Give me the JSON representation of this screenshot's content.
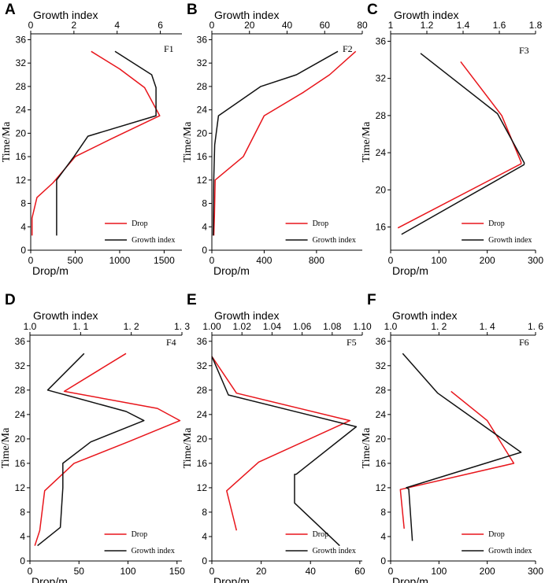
{
  "colors": {
    "drop": "#e8151b",
    "growth": "#111111",
    "axis": "#000000"
  },
  "chart_data": [
    {
      "panel": "A",
      "fault": "F1",
      "type": "line",
      "ylabel": "Time/Ma",
      "xlabel_bottom": "Drop/m",
      "xlabel_top": "Growth index",
      "ylim": [
        0,
        37
      ],
      "yticks": [
        0,
        4,
        8,
        12,
        16,
        20,
        24,
        28,
        32,
        36
      ],
      "bottom_xlim": [
        0,
        1700
      ],
      "bottom_ticks": [
        0,
        500,
        1000,
        1500
      ],
      "top_xlim": [
        0,
        7
      ],
      "top_ticks": [
        0,
        2,
        4,
        6
      ],
      "legend": {
        "drop": "Drop",
        "growth": "Growth index"
      },
      "series": [
        {
          "name": "Drop",
          "axis": "bottom",
          "x": [
            15,
            15,
            70,
            250,
            500,
            900,
            1450,
            1280,
            1000,
            680
          ],
          "y": [
            2.5,
            5.5,
            9,
            11.5,
            16,
            19,
            23,
            27.8,
            31,
            34
          ]
        },
        {
          "name": "Growth index",
          "axis": "top",
          "x": [
            1.2,
            1.2,
            1.2,
            1.2,
            2.0,
            2.65,
            5.8,
            5.8,
            5.6,
            3.9
          ],
          "y": [
            2.5,
            6,
            10,
            12,
            16,
            19.5,
            23,
            27.8,
            30,
            34
          ]
        }
      ]
    },
    {
      "panel": "B",
      "fault": "F2",
      "type": "line",
      "ylabel": "Time/Ma",
      "xlabel_bottom": "Drop/m",
      "xlabel_top": "Growth index",
      "ylim": [
        0,
        37
      ],
      "yticks": [
        0,
        4,
        8,
        12,
        16,
        20,
        24,
        28,
        32,
        36
      ],
      "bottom_xlim": [
        0,
        1150
      ],
      "bottom_ticks": [
        0,
        400,
        800
      ],
      "top_xlim": [
        0,
        80
      ],
      "top_ticks": [
        0,
        20,
        40,
        60,
        80
      ],
      "legend": {
        "drop": "Drop",
        "growth": "Growth index"
      },
      "series": [
        {
          "name": "Drop",
          "axis": "bottom",
          "x": [
            15,
            20,
            25,
            240,
            400,
            700,
            900,
            1100
          ],
          "y": [
            2.5,
            6,
            12,
            16,
            23,
            27,
            30,
            34
          ]
        },
        {
          "name": "Growth index",
          "axis": "top",
          "x": [
            0.7,
            0.8,
            1.0,
            1.5,
            3.5,
            26,
            45,
            67
          ],
          "y": [
            2.5,
            6,
            12,
            18,
            23,
            28,
            30,
            34
          ]
        }
      ]
    },
    {
      "panel": "C",
      "fault": "F3",
      "type": "line",
      "ylabel": "Time/Ma",
      "xlabel_bottom": "Drop/m",
      "xlabel_top": "Growth index",
      "ylim": [
        13.5,
        36.8
      ],
      "yticks": [
        16,
        20,
        24,
        28,
        32,
        36
      ],
      "bottom_xlim": [
        0,
        300
      ],
      "bottom_ticks": [
        0,
        100,
        200,
        300
      ],
      "top_xlim": [
        1.0,
        1.8
      ],
      "top_ticks": [
        1.0,
        1.2,
        1.4,
        1.6,
        1.8
      ],
      "legend": {
        "drop": "Drop",
        "growth": "Growth index"
      },
      "series": [
        {
          "name": "Drop",
          "axis": "bottom",
          "x": [
            15,
            270,
            270,
            230,
            145
          ],
          "y": [
            15.9,
            22.8,
            23.0,
            28.0,
            33.8
          ]
        },
        {
          "name": "Growth index",
          "axis": "top",
          "x": [
            1.06,
            1.736,
            1.738,
            1.59,
            1.165
          ],
          "y": [
            15.2,
            22.7,
            22.9,
            28.2,
            34.7
          ]
        }
      ]
    },
    {
      "panel": "D",
      "fault": "F4",
      "type": "line",
      "ylabel": "Time/Ma",
      "xlabel_bottom": "Drop/m",
      "xlabel_top": "Growth index",
      "ylim": [
        0,
        37
      ],
      "yticks": [
        0,
        4,
        8,
        12,
        16,
        20,
        24,
        28,
        32,
        36
      ],
      "bottom_xlim": [
        0,
        155
      ],
      "bottom_ticks": [
        0,
        50,
        100,
        150
      ],
      "top_xlim": [
        1.0,
        1.3
      ],
      "top_ticks": [
        "1.0",
        "1. 1",
        "1. 2",
        "1. 3"
      ],
      "legend": {
        "drop": "Drop",
        "growth": "Growth index"
      },
      "series": [
        {
          "name": "Drop",
          "axis": "bottom",
          "x": [
            5,
            10,
            15,
            45,
            100,
            153,
            130,
            35,
            98
          ],
          "y": [
            2.5,
            5,
            11.5,
            16,
            19.5,
            23,
            25,
            27.8,
            34
          ]
        },
        {
          "name": "Growth index",
          "axis": "top",
          "x": [
            1.015,
            1.06,
            1.065,
            1.065,
            1.12,
            1.225,
            1.19,
            1.035,
            1.107
          ],
          "y": [
            2.5,
            5.5,
            12,
            16,
            19.5,
            23,
            24.5,
            28,
            34
          ]
        }
      ]
    },
    {
      "panel": "E",
      "fault": "F5",
      "type": "line",
      "ylabel": "Time/Ma",
      "xlabel_bottom": "Drop/m",
      "xlabel_top": "Growth index",
      "ylim": [
        0,
        37
      ],
      "yticks": [
        0,
        4,
        8,
        12,
        16,
        20,
        24,
        28,
        32,
        36
      ],
      "bottom_xlim": [
        0,
        61
      ],
      "bottom_ticks": [
        0,
        20,
        40,
        60
      ],
      "top_xlim": [
        1.0,
        1.1
      ],
      "top_ticks": [
        "1.00",
        "1.02",
        "1.04",
        "1.06",
        "1.08",
        "1.10"
      ],
      "legend": {
        "drop": "Drop",
        "growth": "Growth index"
      },
      "series": [
        {
          "name": "Drop",
          "axis": "bottom",
          "x": [
            10,
            6,
            19,
            56,
            10,
            0
          ],
          "y": [
            5,
            11.5,
            16.2,
            23.0,
            27.5,
            33.5
          ]
        },
        {
          "name": "Growth index",
          "axis": "top",
          "x": [
            1.085,
            1.055,
            1.055,
            1.056,
            1.096,
            1.011,
            1.0
          ],
          "y": [
            2.5,
            9.5,
            14.2,
            14.2,
            22.0,
            27.2,
            33.5
          ]
        }
      ]
    },
    {
      "panel": "F",
      "fault": "F6",
      "type": "line",
      "ylabel": "Time/Ma",
      "xlabel_bottom": "Drop/m",
      "xlabel_top": "Growth index",
      "ylim": [
        0,
        37
      ],
      "yticks": [
        0,
        4,
        8,
        12,
        16,
        20,
        24,
        28,
        32,
        36
      ],
      "bottom_xlim": [
        0,
        300
      ],
      "bottom_ticks": [
        0,
        100,
        200,
        300
      ],
      "top_xlim": [
        1.0,
        1.6
      ],
      "top_ticks": [
        "1.0",
        "1. 2",
        "1. 4",
        "1. 6"
      ],
      "legend": {
        "drop": "Drop",
        "growth": "Growth index"
      },
      "series": [
        {
          "name": "Drop",
          "axis": "bottom",
          "x": [
            28,
            20,
            255,
            200,
            125
          ],
          "y": [
            5.3,
            11.7,
            16,
            23,
            27.8
          ]
        },
        {
          "name": "Growth index",
          "axis": "top",
          "x": [
            1.09,
            1.075,
            1.065,
            1.54,
            1.195,
            1.05
          ],
          "y": [
            3.3,
            11.8,
            12.0,
            17.8,
            27.5,
            34
          ]
        }
      ]
    }
  ]
}
